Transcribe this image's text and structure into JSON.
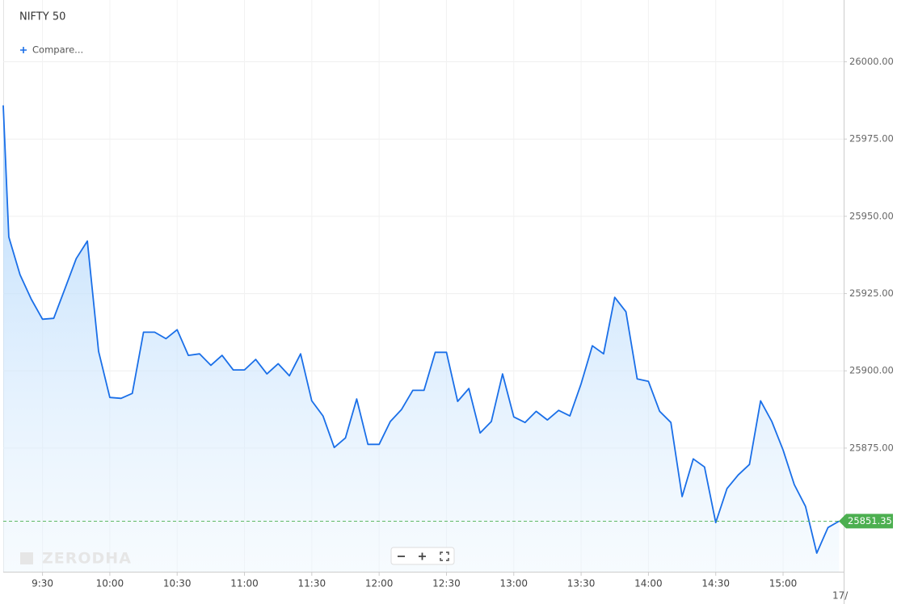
{
  "chart_data": {
    "type": "area",
    "series": [
      {
        "name": "NIFTY 50",
        "color": "#1a6fe8",
        "values": [
          25985.9,
          25943.3,
          25931.1,
          25923.2,
          25916.7,
          25917.0,
          25926.6,
          25936.3,
          25942.0,
          25906.3,
          25891.4,
          25891.1,
          25892.7,
          25912.5,
          25912.5,
          25910.4,
          25913.3,
          25905.0,
          25905.5,
          25901.8,
          25905.0,
          25900.3,
          25900.3,
          25903.7,
          25899.0,
          25902.3,
          25898.4,
          25905.5,
          25890.3,
          25885.4,
          25875.2,
          25878.3,
          25890.9,
          25876.2,
          25876.2,
          25883.6,
          25887.5,
          25893.7,
          25893.7,
          25906.0,
          25906.0,
          25890.1,
          25894.3,
          25879.9,
          25883.6,
          25899.0,
          25885.1,
          25883.3,
          25886.9,
          25884.1,
          25887.2,
          25885.4,
          25895.8,
          25908.1,
          25905.5,
          25923.8,
          25919.1,
          25897.4,
          25896.6,
          25886.9,
          25883.3,
          25859.3,
          25871.5,
          25868.9,
          25850.9,
          25861.9,
          25866.3,
          25869.7,
          25890.3,
          25883.6,
          25874.4,
          25863.2,
          25856.1,
          25841.0,
          25849.3,
          25851.35
        ]
      }
    ],
    "x": [
      552.5,
      555,
      560,
      565,
      570,
      575,
      580,
      585,
      590,
      595,
      600,
      605,
      610,
      615,
      620,
      625,
      630,
      635,
      640,
      645,
      650,
      655,
      660,
      665,
      670,
      675,
      680,
      685,
      690,
      695,
      700,
      705,
      710,
      715,
      720,
      725,
      730,
      735,
      740,
      745,
      750,
      755,
      760,
      765,
      770,
      775,
      780,
      785,
      790,
      795,
      800,
      805,
      810,
      815,
      820,
      825,
      830,
      835,
      840,
      845,
      850,
      855,
      860,
      865,
      870,
      875,
      880,
      885,
      890,
      895,
      900,
      905,
      910,
      915,
      920,
      925
    ],
    "xlim": [
      552.5,
      927
    ],
    "xticks": [
      {
        "value": 570,
        "label": "9:30"
      },
      {
        "value": 600,
        "label": "10:00"
      },
      {
        "value": 630,
        "label": "10:30"
      },
      {
        "value": 660,
        "label": "11:00"
      },
      {
        "value": 690,
        "label": "11:30"
      },
      {
        "value": 720,
        "label": "12:00"
      },
      {
        "value": 750,
        "label": "12:30"
      },
      {
        "value": 780,
        "label": "13:00"
      },
      {
        "value": 810,
        "label": "13:30"
      },
      {
        "value": 840,
        "label": "14:00"
      },
      {
        "value": 870,
        "label": "14:30"
      },
      {
        "value": 900,
        "label": "15:00"
      }
    ],
    "ylim": [
      25835,
      26020
    ],
    "yticks": [
      {
        "value": 25875,
        "label": "25875.00"
      },
      {
        "value": 25900,
        "label": "25900.00"
      },
      {
        "value": 25925,
        "label": "25925.00"
      },
      {
        "value": 25950,
        "label": "25950.00"
      },
      {
        "value": 25975,
        "label": "25975.00"
      },
      {
        "value": 26000,
        "label": "26000.00"
      }
    ],
    "grid": true,
    "last_price": 25851.35,
    "last_price_color": "#4caf50",
    "compare_button": "Compare...",
    "watermark": "ZERODHA",
    "edge_date_label": "17/"
  }
}
